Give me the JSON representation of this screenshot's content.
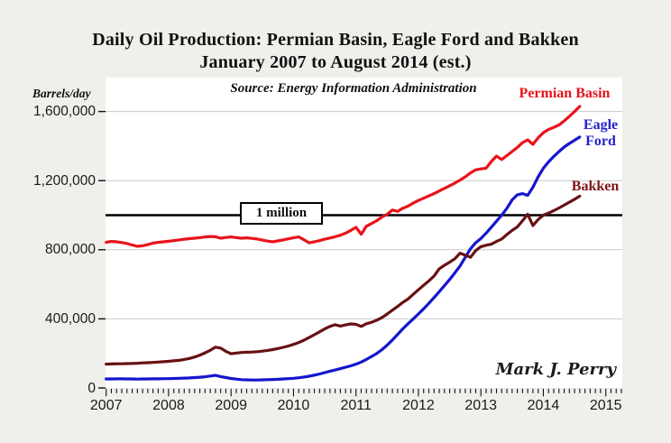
{
  "page": {
    "background_color": "#f0efec"
  },
  "header": {
    "title_line1": "Daily Oil Production: Permian Basin, Eagle Ford and Bakken",
    "title_line2": "January 2007 to August 2014 (est.)"
  },
  "chart": {
    "source_note": "Source: Energy Information Administration",
    "y_axis_unit_label": "Barrels/day",
    "signature": "Mark J. Perry"
  },
  "chart_data": {
    "type": "line",
    "title": "Daily Oil Production: Permian Basin, Eagle Ford and Bakken",
    "subtitle": "January 2007 to August 2014 (est.)",
    "xlabel": "",
    "ylabel": "Barrels/day",
    "x_monthly_from": "2007-01",
    "x_monthly_to": "2014-08",
    "xlim": [
      2007,
      2015.3
    ],
    "ylim": [
      0,
      1800000
    ],
    "grid": "horizontal",
    "x_tick_labels": [
      "2007",
      "2008",
      "2009",
      "2010",
      "2011",
      "2012",
      "2013",
      "2014",
      "2015"
    ],
    "y_ticks": [
      0,
      400000,
      800000,
      1200000,
      1600000
    ],
    "y_tick_labels": [
      "0",
      "400,000",
      "800,000",
      "1,200,000",
      "1,600,000"
    ],
    "reference_line": {
      "value": 1000000,
      "label": "1 million",
      "color": "#000000"
    },
    "colors": {
      "grid": "#c9c9c9",
      "axis_text": "#1a1a1a",
      "plot_background": "#ffffff"
    },
    "series": [
      {
        "name": "Permian Basin",
        "color": "#e8131a",
        "label_lines": [
          "Permian Basin"
        ],
        "values": [
          843000,
          848000,
          846000,
          842000,
          836000,
          827000,
          820000,
          823000,
          830000,
          838000,
          843000,
          846000,
          849000,
          853000,
          857000,
          861000,
          864000,
          867000,
          870000,
          874000,
          877000,
          875000,
          867000,
          871000,
          874000,
          870000,
          867000,
          869000,
          866000,
          862000,
          856000,
          850000,
          846000,
          851000,
          857000,
          863000,
          869000,
          874000,
          858000,
          840000,
          846000,
          853000,
          861000,
          868000,
          875000,
          884000,
          896000,
          912000,
          930000,
          890000,
          936000,
          952000,
          968000,
          990000,
          1005000,
          1030000,
          1022000,
          1040000,
          1052000,
          1070000,
          1085000,
          1098000,
          1112000,
          1125000,
          1140000,
          1155000,
          1170000,
          1186000,
          1203000,
          1222000,
          1245000,
          1262000,
          1268000,
          1272000,
          1310000,
          1342000,
          1322000,
          1345000,
          1368000,
          1392000,
          1420000,
          1436000,
          1410000,
          1448000,
          1478000,
          1496000,
          1508000,
          1522000,
          1545000,
          1572000,
          1600000,
          1630000
        ]
      },
      {
        "name": "Eagle Ford",
        "color": "#1515cf",
        "label_lines": [
          "Eagle",
          "Ford"
        ],
        "values": [
          52000,
          52000,
          53000,
          53000,
          52000,
          52000,
          51000,
          52000,
          52000,
          53000,
          53000,
          54000,
          54000,
          55000,
          56000,
          57000,
          58000,
          60000,
          62000,
          65000,
          69000,
          73000,
          66000,
          60000,
          55000,
          51000,
          48000,
          47000,
          46000,
          46000,
          47000,
          48000,
          49000,
          50000,
          52000,
          54000,
          56000,
          59000,
          63000,
          68000,
          74000,
          81000,
          89000,
          97000,
          104000,
          112000,
          120000,
          128000,
          138000,
          150000,
          165000,
          182000,
          200000,
          222000,
          248000,
          278000,
          310000,
          342000,
          372000,
          400000,
          428000,
          458000,
          490000,
          523000,
          557000,
          592000,
          628000,
          666000,
          706000,
          756000,
          806000,
          840000,
          865000,
          896000,
          930000,
          965000,
          1000000,
          1040000,
          1088000,
          1118000,
          1125000,
          1115000,
          1162000,
          1222000,
          1272000,
          1308000,
          1340000,
          1368000,
          1394000,
          1415000,
          1434000,
          1452000
        ]
      },
      {
        "name": "Bakken",
        "color": "#681114",
        "label_lines": [
          "Bakken"
        ],
        "values": [
          138000,
          139000,
          140000,
          140000,
          141000,
          142000,
          143000,
          145000,
          146000,
          148000,
          150000,
          152000,
          154000,
          157000,
          160000,
          165000,
          171000,
          179000,
          190000,
          203000,
          218000,
          236000,
          231000,
          212000,
          198000,
          202000,
          205000,
          207000,
          208000,
          210000,
          213000,
          217000,
          222000,
          228000,
          235000,
          243000,
          252000,
          263000,
          276000,
          292000,
          308000,
          325000,
          342000,
          356000,
          366000,
          358000,
          365000,
          371000,
          368000,
          356000,
          372000,
          380000,
          392000,
          408000,
          428000,
          450000,
          472000,
          495000,
          515000,
          542000,
          568000,
          594000,
          620000,
          648000,
          690000,
          710000,
          728000,
          748000,
          780000,
          768000,
          756000,
          795000,
          818000,
          826000,
          832000,
          848000,
          862000,
          888000,
          912000,
          932000,
          968000,
          1005000,
          940000,
          975000,
          1000000,
          1012000,
          1026000,
          1042000,
          1058000,
          1075000,
          1092000,
          1110000
        ]
      }
    ]
  }
}
